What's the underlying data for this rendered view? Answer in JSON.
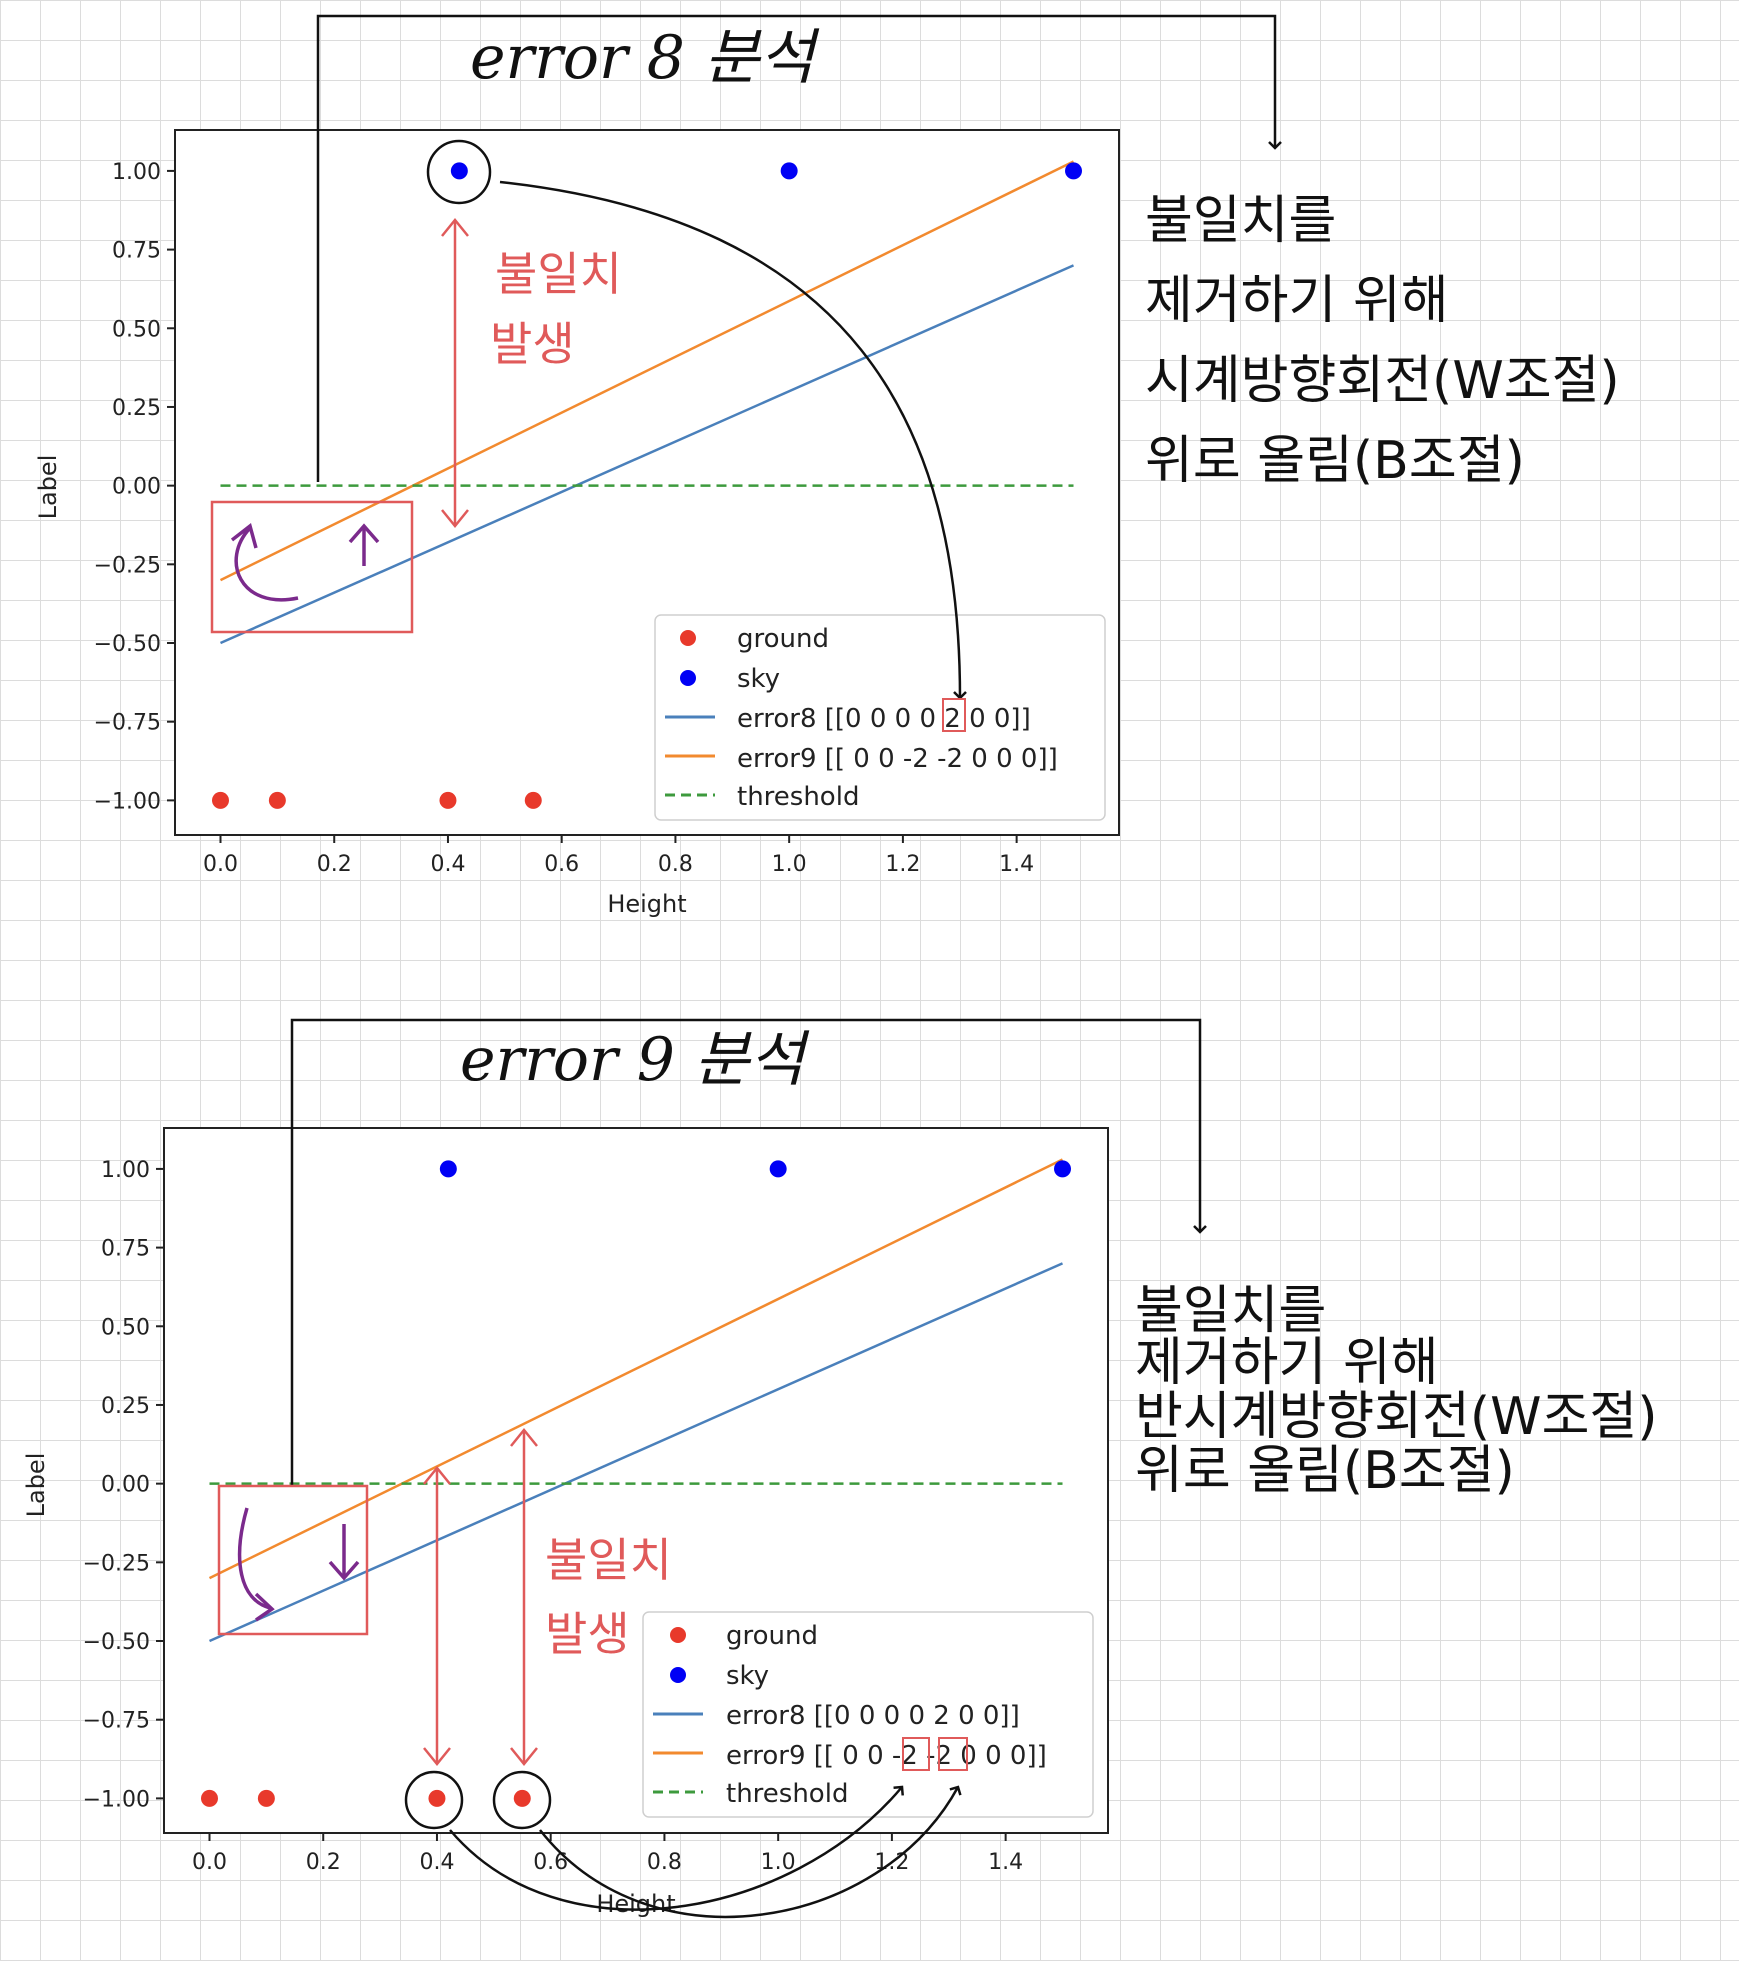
{
  "annotations": [
    {
      "title": "error 8 분석",
      "note_lines": [
        "불일치를",
        "제거하기 위해",
        "시계방향회전(W조절)",
        "위로 올림(B조절)"
      ],
      "mismatch_note": [
        "불일치",
        "발생"
      ],
      "box_mark": [
        "2"
      ]
    },
    {
      "title": "error 9 분석",
      "note_lines": [
        "불일치를",
        "제거하기 위해",
        "반시계방향회전(W조절)",
        "위로 올림(B조절)"
      ],
      "mismatch_note": [
        "불일치",
        "발생"
      ],
      "box_mark": [
        "-2",
        "-2"
      ]
    }
  ],
  "colors": {
    "ground": "#e8392b",
    "sky": "#0000f5",
    "error8": "#4a80bb",
    "error9": "#f28a2f",
    "threshold": "#3d9a3d",
    "annotation_red": "#e05a5a",
    "annotation_purple": "#7b2a8c"
  },
  "chart_data": [
    {
      "type": "scatter",
      "xlabel": "Height",
      "ylabel": "Label",
      "xlim": [
        -0.08,
        1.58
      ],
      "ylim": [
        -1.11,
        1.13
      ],
      "xticks": [
        "0.0",
        "0.2",
        "0.4",
        "0.6",
        "0.8",
        "1.0",
        "1.2",
        "1.4"
      ],
      "yticks": [
        "1.00",
        "0.75",
        "0.50",
        "0.25",
        "0.00",
        "−0.25",
        "−0.50",
        "−0.75",
        "−1.00"
      ],
      "grid": false,
      "legend_position": "lower-right",
      "series": [
        {
          "name": "ground",
          "kind": "points",
          "x": [
            0.0,
            0.1,
            0.4,
            0.55
          ],
          "y": [
            -1,
            -1,
            -1,
            -1
          ]
        },
        {
          "name": "sky",
          "kind": "points",
          "x": [
            0.42,
            1.0,
            1.5
          ],
          "y": [
            1,
            1,
            1
          ]
        },
        {
          "name": "error8 [[0 0 0 0 2 0 0]]",
          "kind": "line",
          "x": [
            0,
            1.5
          ],
          "y": [
            -0.5,
            0.7
          ]
        },
        {
          "name": "error9 [[ 0  0 -2 -2  0  0  0]]",
          "kind": "line",
          "x": [
            0,
            1.5
          ],
          "y": [
            -0.3,
            1.03
          ]
        },
        {
          "name": "threshold",
          "kind": "dashed",
          "x": [
            0,
            1.5
          ],
          "y": [
            0,
            0
          ]
        }
      ]
    },
    {
      "type": "scatter",
      "xlabel": "Height",
      "ylabel": "Label",
      "xlim": [
        -0.08,
        1.58
      ],
      "ylim": [
        -1.11,
        1.13
      ],
      "xticks": [
        "0.0",
        "0.2",
        "0.4",
        "0.6",
        "0.8",
        "1.0",
        "1.2",
        "1.4"
      ],
      "yticks": [
        "1.00",
        "0.75",
        "0.50",
        "0.25",
        "0.00",
        "−0.25",
        "−0.50",
        "−0.75",
        "−1.00"
      ],
      "grid": false,
      "legend_position": "lower-right",
      "series": [
        {
          "name": "ground",
          "kind": "points",
          "x": [
            0.0,
            0.1,
            0.4,
            0.55
          ],
          "y": [
            -1,
            -1,
            -1,
            -1
          ]
        },
        {
          "name": "sky",
          "kind": "points",
          "x": [
            0.42,
            1.0,
            1.5
          ],
          "y": [
            1,
            1,
            1
          ]
        },
        {
          "name": "error8 [[0 0 0 0 2 0 0]]",
          "kind": "line",
          "x": [
            0,
            1.5
          ],
          "y": [
            -0.5,
            0.7
          ]
        },
        {
          "name": "error9 [[ 0  0 -2 -2  0  0  0]]",
          "kind": "line",
          "x": [
            0,
            1.5
          ],
          "y": [
            -0.3,
            1.03
          ]
        },
        {
          "name": "threshold",
          "kind": "dashed",
          "x": [
            0,
            1.5
          ],
          "y": [
            0,
            0
          ]
        }
      ]
    }
  ]
}
